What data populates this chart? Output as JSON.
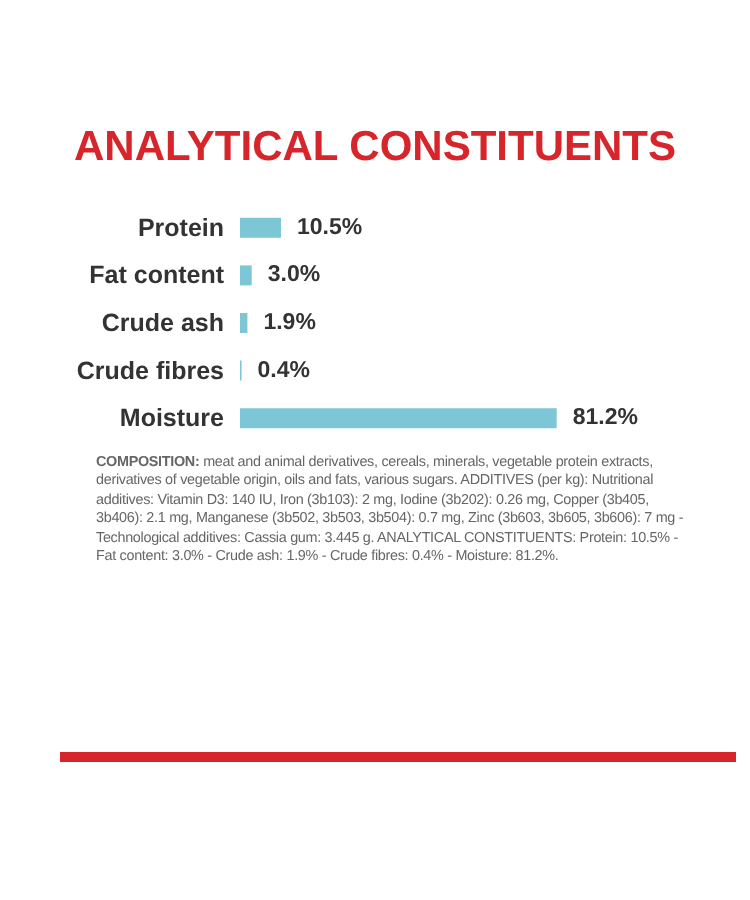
{
  "chart_data": {
    "type": "bar",
    "orientation": "horizontal",
    "title": "ANALYTICAL CONSTITUENTS",
    "categories": [
      "Protein",
      "Fat content",
      "Crude ash",
      "Crude fibres",
      "Moisture"
    ],
    "values": [
      10.5,
      3.0,
      1.9,
      0.4,
      81.2
    ],
    "value_labels": [
      "10.5%",
      "3.0%",
      "1.9%",
      "0.4%",
      "81.2%"
    ],
    "color": "#7cc6d6",
    "annotations": [
      "COMPOSITION: meat and animal derivatives, cereals, minerals, vegetable protein extracts, derivatives of vegetable origin, oils and fats, various sugars. ADDITIVES (per kg): Nutritional additives: Vitamin D3: 140 IU, Iron (3b103): 2 mg, Iodine (3b202): 0.26 mg, Copper (3b405, 3b406): 2.1 mg, Manganese (3b502, 3b503, 3b504): 0.7 mg, Zinc (3b603, 3b605, 3b606): 7 mg - Technological additives: Cassia gum: 3.445 g. ANALYTICAL CONSTITUENTS: Protein: 10.5% - Fat content: 3.0% - Crude ash: 1.9% - Crude fibres: 0.4% - Moisture: 81.2%."
    ]
  }
}
